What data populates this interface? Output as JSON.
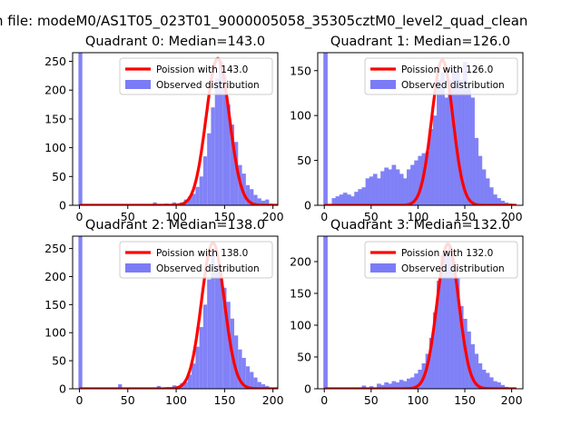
{
  "figure": {
    "suptitle": "n file: modeM0/AS1T05_023T01_9000005058_35305cztM0_level2_quad_clean"
  },
  "colors": {
    "hist": "#7b7bf7",
    "curve": "#ff0000",
    "axis": "#000000"
  },
  "chart_data": [
    {
      "type": "bar",
      "title": "Quadrant 0: Median=143.0",
      "xlim": [
        -7,
        205
      ],
      "ylim": [
        0,
        265
      ],
      "xticks": [
        0,
        50,
        100,
        150,
        200
      ],
      "yticks": [
        0,
        50,
        100,
        150,
        200,
        250
      ],
      "legend": {
        "position": "top-right",
        "curve_label": "Poission with 143.0",
        "hist_label": "Observed distribution"
      },
      "bin_width": 4.0,
      "bins": [
        [
          -1,
          265
        ],
        [
          76,
          5
        ],
        [
          84,
          2
        ],
        [
          88,
          3
        ],
        [
          92,
          2
        ],
        [
          96,
          5
        ],
        [
          100,
          2
        ],
        [
          104,
          5
        ],
        [
          108,
          10
        ],
        [
          112,
          15
        ],
        [
          116,
          20
        ],
        [
          120,
          32
        ],
        [
          124,
          50
        ],
        [
          128,
          85
        ],
        [
          132,
          125
        ],
        [
          136,
          170
        ],
        [
          140,
          220
        ],
        [
          144,
          250
        ],
        [
          148,
          225
        ],
        [
          152,
          175
        ],
        [
          156,
          140
        ],
        [
          160,
          110
        ],
        [
          164,
          70
        ],
        [
          168,
          55
        ],
        [
          172,
          35
        ],
        [
          176,
          28
        ],
        [
          180,
          18
        ],
        [
          184,
          12
        ],
        [
          188,
          8
        ],
        [
          192,
          10
        ],
        [
          196,
          3
        ]
      ],
      "curve": {
        "mean": 143.0,
        "peak": 255,
        "x_range": [
          0,
          205
        ]
      }
    },
    {
      "type": "bar",
      "title": "Quadrant 1: Median=126.0",
      "xlim": [
        -7,
        212
      ],
      "ylim": [
        0,
        170
      ],
      "xticks": [
        0,
        50,
        100,
        150,
        200
      ],
      "yticks": [
        0,
        50,
        100,
        150
      ],
      "legend": {
        "position": "top-right",
        "curve_label": "Poission with 126.0",
        "hist_label": "Observed distribution"
      },
      "bin_width": 4.6,
      "bins": [
        [
          -1,
          170
        ],
        [
          8,
          8
        ],
        [
          12,
          10
        ],
        [
          16,
          12
        ],
        [
          20,
          14
        ],
        [
          24,
          12
        ],
        [
          28,
          10
        ],
        [
          32,
          15
        ],
        [
          36,
          18
        ],
        [
          40,
          20
        ],
        [
          44,
          30
        ],
        [
          48,
          32
        ],
        [
          52,
          35
        ],
        [
          56,
          30
        ],
        [
          60,
          38
        ],
        [
          64,
          42
        ],
        [
          68,
          40
        ],
        [
          72,
          45
        ],
        [
          76,
          40
        ],
        [
          80,
          35
        ],
        [
          84,
          30
        ],
        [
          88,
          40
        ],
        [
          92,
          45
        ],
        [
          96,
          50
        ],
        [
          100,
          55
        ],
        [
          104,
          58
        ],
        [
          108,
          60
        ],
        [
          112,
          85
        ],
        [
          116,
          100
        ],
        [
          120,
          140
        ],
        [
          124,
          148
        ],
        [
          128,
          120
        ],
        [
          132,
          140
        ],
        [
          136,
          152
        ],
        [
          140,
          150
        ],
        [
          144,
          140
        ],
        [
          148,
          160
        ],
        [
          152,
          135
        ],
        [
          156,
          120
        ],
        [
          160,
          75
        ],
        [
          164,
          55
        ],
        [
          168,
          40
        ],
        [
          172,
          30
        ],
        [
          176,
          20
        ],
        [
          180,
          12
        ],
        [
          184,
          8
        ],
        [
          188,
          5
        ],
        [
          192,
          3
        ],
        [
          196,
          2
        ]
      ],
      "curve": {
        "mean": 126.0,
        "peak": 162,
        "x_range": [
          0,
          205
        ]
      }
    },
    {
      "type": "bar",
      "title": "Quadrant 2: Median=138.0",
      "xlim": [
        -7,
        205
      ],
      "ylim": [
        0,
        272
      ],
      "xticks": [
        0,
        50,
        100,
        150,
        200
      ],
      "yticks": [
        0,
        50,
        100,
        150,
        200,
        250
      ],
      "legend": {
        "position": "top-right",
        "curve_label": "Poission with 138.0",
        "hist_label": "Observed distribution"
      },
      "bin_width": 4.0,
      "bins": [
        [
          -1,
          272
        ],
        [
          40,
          8
        ],
        [
          80,
          5
        ],
        [
          88,
          3
        ],
        [
          92,
          3
        ],
        [
          96,
          6
        ],
        [
          100,
          5
        ],
        [
          104,
          10
        ],
        [
          108,
          12
        ],
        [
          112,
          25
        ],
        [
          116,
          45
        ],
        [
          120,
          75
        ],
        [
          124,
          110
        ],
        [
          128,
          150
        ],
        [
          132,
          195
        ],
        [
          136,
          245
        ],
        [
          140,
          220
        ],
        [
          144,
          210
        ],
        [
          148,
          180
        ],
        [
          152,
          155
        ],
        [
          156,
          125
        ],
        [
          160,
          95
        ],
        [
          164,
          70
        ],
        [
          168,
          55
        ],
        [
          172,
          40
        ],
        [
          176,
          30
        ],
        [
          180,
          20
        ],
        [
          184,
          12
        ],
        [
          188,
          8
        ],
        [
          192,
          5
        ]
      ],
      "curve": {
        "mean": 138.0,
        "peak": 260,
        "x_range": [
          0,
          205
        ]
      }
    },
    {
      "type": "bar",
      "title": "Quadrant 3: Median=132.0",
      "xlim": [
        -7,
        212
      ],
      "ylim": [
        0,
        240
      ],
      "xticks": [
        0,
        50,
        100,
        150,
        200
      ],
      "yticks": [
        0,
        50,
        100,
        150,
        200
      ],
      "legend": {
        "position": "top-right",
        "curve_label": "Poission with 132.0",
        "hist_label": "Observed distribution"
      },
      "bin_width": 4.6,
      "bins": [
        [
          -1,
          240
        ],
        [
          40,
          5
        ],
        [
          48,
          4
        ],
        [
          56,
          8
        ],
        [
          60,
          6
        ],
        [
          64,
          10
        ],
        [
          68,
          8
        ],
        [
          72,
          12
        ],
        [
          76,
          10
        ],
        [
          80,
          14
        ],
        [
          84,
          12
        ],
        [
          88,
          16
        ],
        [
          92,
          18
        ],
        [
          96,
          24
        ],
        [
          100,
          30
        ],
        [
          104,
          40
        ],
        [
          108,
          55
        ],
        [
          112,
          80
        ],
        [
          116,
          120
        ],
        [
          120,
          170
        ],
        [
          124,
          210
        ],
        [
          128,
          215
        ],
        [
          132,
          225
        ],
        [
          136,
          200
        ],
        [
          140,
          175
        ],
        [
          144,
          130
        ],
        [
          148,
          110
        ],
        [
          152,
          90
        ],
        [
          156,
          70
        ],
        [
          160,
          55
        ],
        [
          164,
          40
        ],
        [
          168,
          30
        ],
        [
          172,
          25
        ],
        [
          176,
          18
        ],
        [
          180,
          12
        ],
        [
          184,
          10
        ],
        [
          188,
          6
        ],
        [
          192,
          3
        ]
      ],
      "curve": {
        "mean": 132.0,
        "peak": 228,
        "x_range": [
          0,
          205
        ]
      }
    }
  ]
}
